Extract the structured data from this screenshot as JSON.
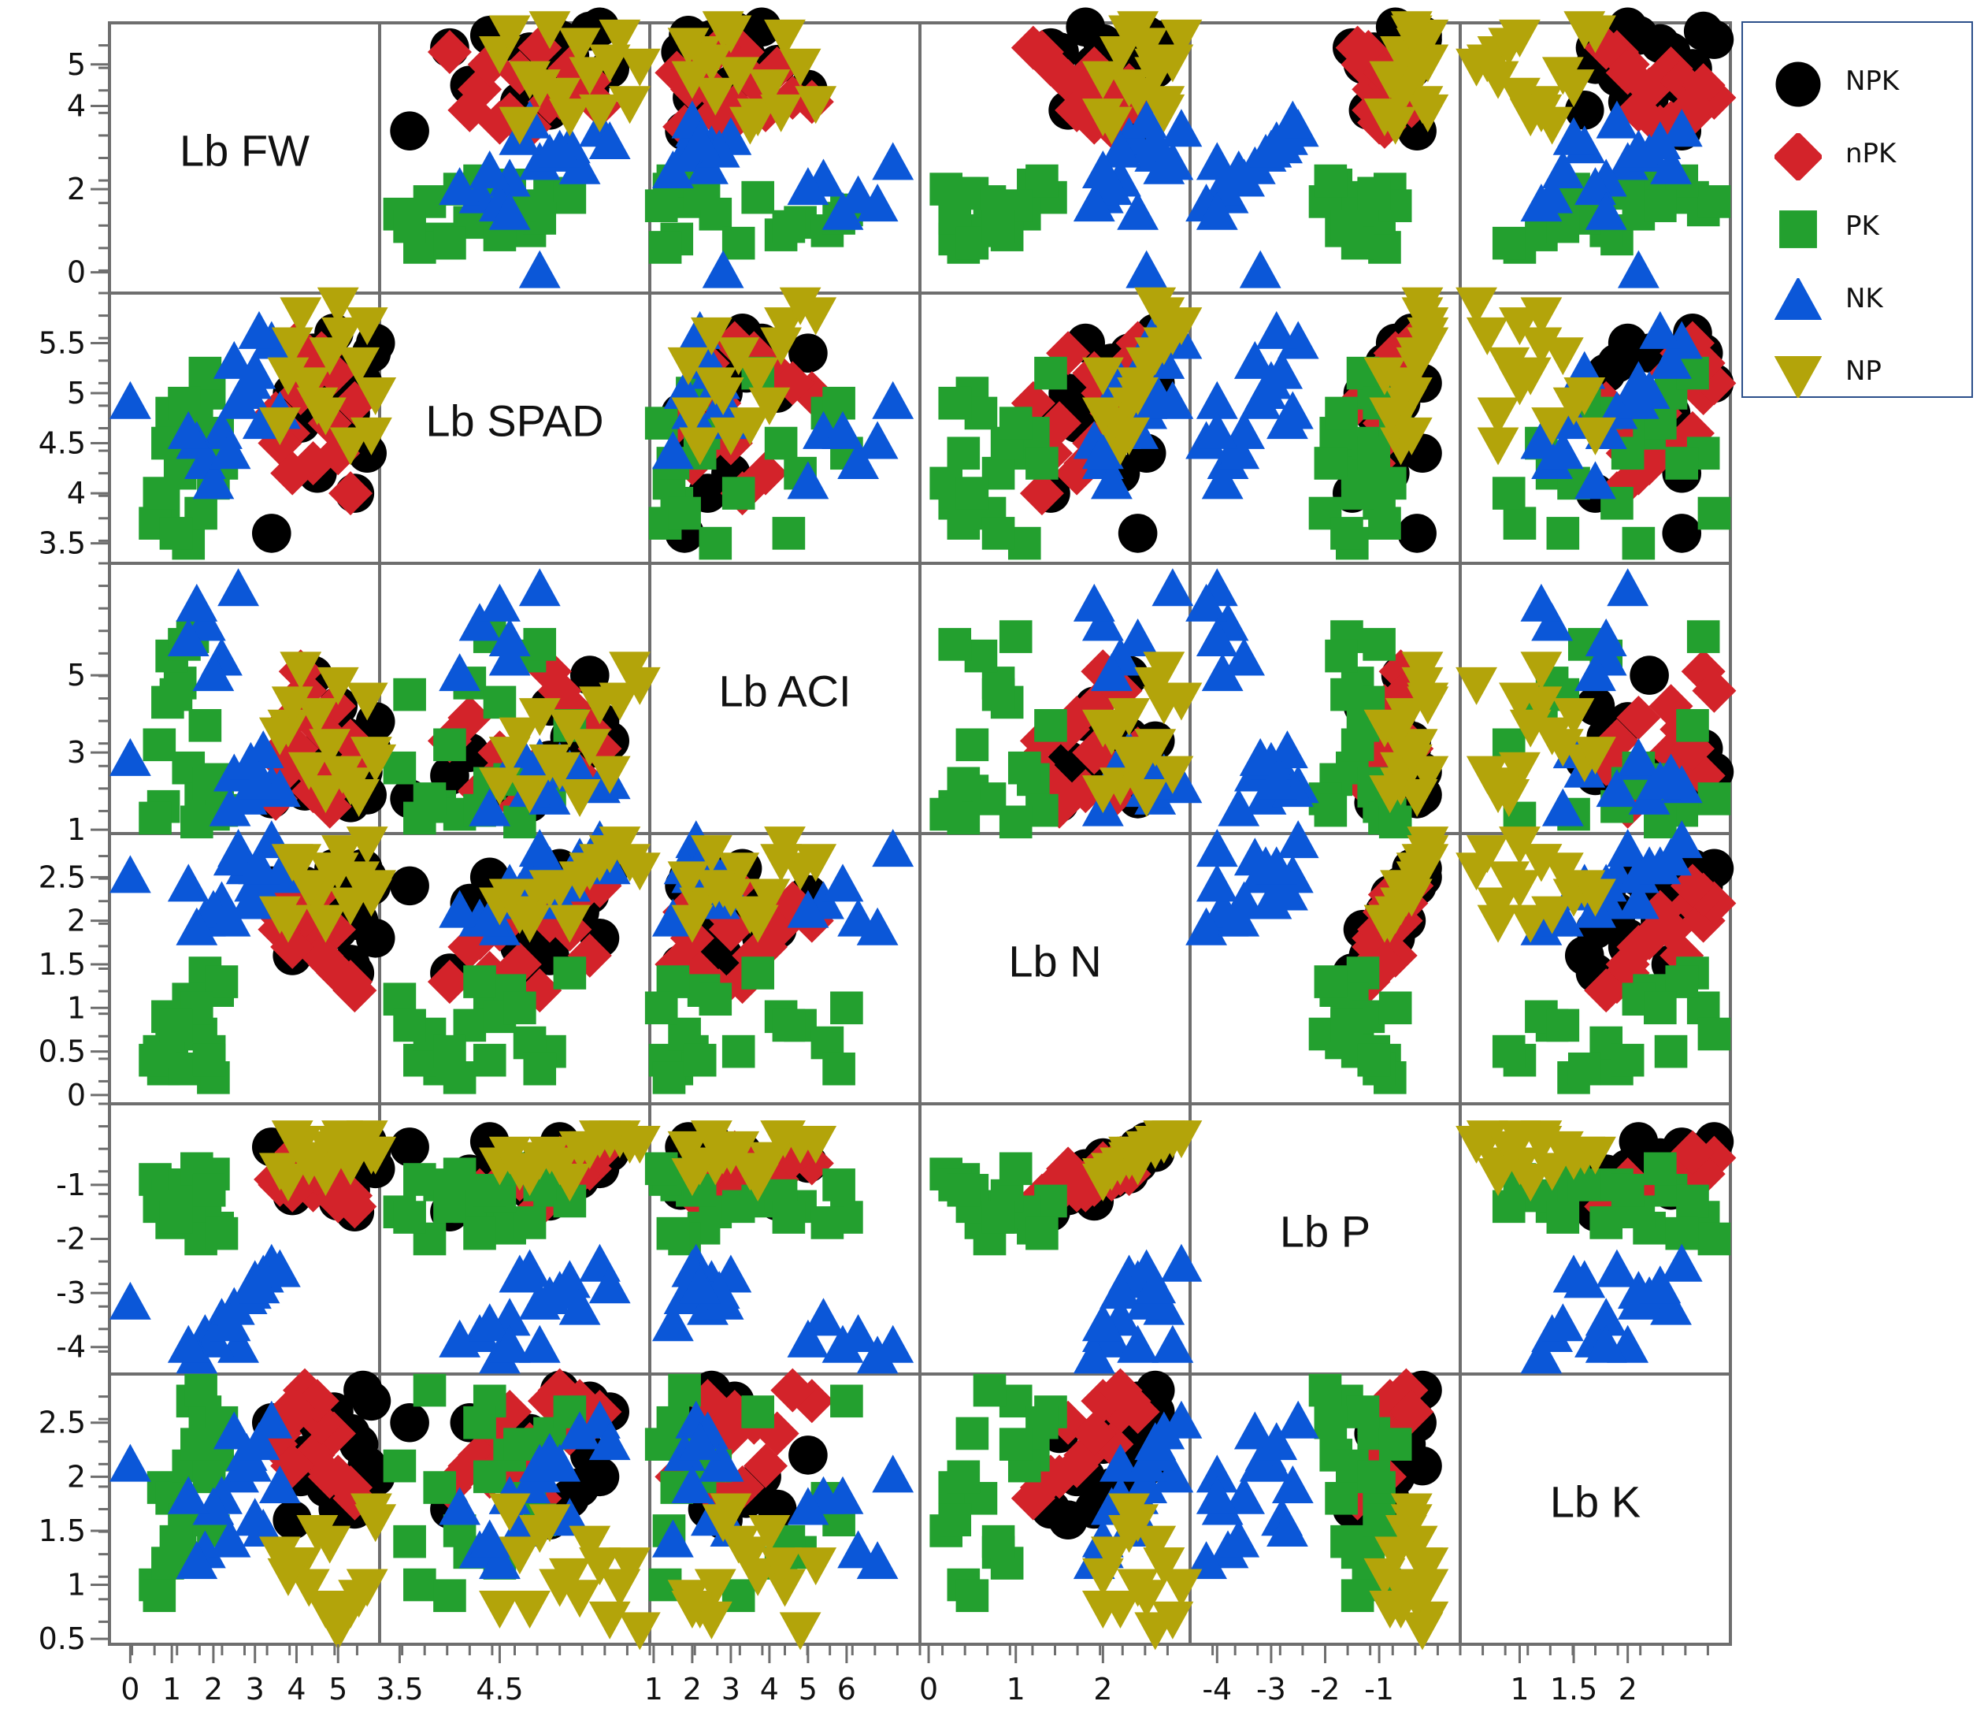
{
  "chart_data": {
    "type": "scatter",
    "subtype": "scatterplot-matrix",
    "variables": [
      "Lb FW",
      "Lb SPAD",
      "Lb ACI",
      "Lb N",
      "Lb P",
      "Lb K"
    ],
    "axis_ranges": [
      [
        -0.5,
        6.0
      ],
      [
        3.3,
        6.0
      ],
      [
        0.9,
        7.9
      ],
      [
        -0.1,
        3.0
      ],
      [
        -4.5,
        0.5
      ],
      [
        0.45,
        2.95
      ]
    ],
    "x_ticks": [
      {
        "values": [
          0,
          1,
          2,
          3,
          4,
          5
        ],
        "labels": [
          "0",
          "1",
          "2",
          "3",
          "4",
          "5"
        ]
      },
      {
        "values": [
          3.5,
          4.5
        ],
        "labels": [
          "3.5",
          "4.5"
        ]
      },
      {
        "values": [
          1,
          2,
          3,
          4,
          5,
          6
        ],
        "labels": [
          "1",
          "2",
          "3",
          "4",
          "5",
          "6"
        ]
      },
      {
        "values": [
          0,
          1,
          2
        ],
        "labels": [
          "0",
          "1",
          "2"
        ]
      },
      {
        "values": [
          -4,
          -3,
          -2,
          -1
        ],
        "labels": [
          "-4",
          "-3",
          "-2",
          "-1"
        ]
      },
      {
        "values": [
          1,
          1.5,
          2
        ],
        "labels": [
          "1",
          "1.5",
          "2"
        ]
      }
    ],
    "y_ticks": [
      {
        "values": [
          0,
          2,
          4,
          5
        ],
        "labels": [
          "0",
          "2",
          "4",
          "5"
        ]
      },
      {
        "values": [
          3.5,
          4,
          4.5,
          5,
          5.5
        ],
        "labels": [
          "3.5",
          "4",
          "4.5",
          "5",
          "5.5"
        ]
      },
      {
        "values": [
          1,
          3,
          5
        ],
        "labels": [
          "1",
          "3",
          "5"
        ]
      },
      {
        "values": [
          0,
          0.5,
          1,
          1.5,
          2,
          2.5
        ],
        "labels": [
          "0",
          "0.5",
          "1",
          "1.5",
          "2",
          "2.5"
        ]
      },
      {
        "values": [
          -4,
          -3,
          -2,
          -1
        ],
        "labels": [
          "-4",
          "-3",
          "-2",
          "-1"
        ]
      },
      {
        "values": [
          0.5,
          1,
          1.5,
          2,
          2.5
        ],
        "labels": [
          "0.5",
          "1",
          "1.5",
          "2",
          "2.5"
        ]
      }
    ],
    "legend": {
      "position": "top-right-outside"
    },
    "grid": false,
    "groups": [
      {
        "name": "NPK",
        "marker": "circle",
        "color": "#000000",
        "points": [
          [
            5.6,
            5.1,
            2.5,
            2.6,
            -0.2,
            2.8
          ],
          [
            5.8,
            5.4,
            3.1,
            2.4,
            -0.4,
            2.7
          ],
          [
            4.2,
            4.9,
            2.0,
            2.4,
            -0.6,
            2.2
          ],
          [
            4.7,
            5.3,
            3.6,
            2.1,
            -0.9,
            1.9
          ],
          [
            5.3,
            4.8,
            1.7,
            1.5,
            -1.1,
            2.4
          ],
          [
            5.9,
            5.5,
            3.8,
            1.8,
            -0.7,
            2.0
          ],
          [
            4.5,
            4.2,
            3.0,
            2.2,
            -0.8,
            2.5
          ],
          [
            3.4,
            3.6,
            1.8,
            2.4,
            -0.3,
            2.5
          ],
          [
            5.0,
            5.0,
            4.2,
            1.9,
            -1.3,
            1.7
          ],
          [
            5.5,
            4.5,
            2.6,
            2.0,
            -0.5,
            2.3
          ],
          [
            4.9,
            5.6,
            3.3,
            2.6,
            -0.4,
            2.6
          ],
          [
            4.1,
            4.7,
            2.3,
            1.7,
            -1.0,
            2.0
          ],
          [
            5.2,
            5.2,
            3.4,
            2.3,
            -0.8,
            1.8
          ],
          [
            3.9,
            5.0,
            2.8,
            1.6,
            -1.2,
            1.6
          ],
          [
            5.7,
            4.4,
            1.9,
            2.5,
            -0.2,
            2.1
          ],
          [
            4.4,
            5.4,
            5.0,
            2.3,
            -0.6,
            2.2
          ],
          [
            5.4,
            4.0,
            2.4,
            1.4,
            -1.5,
            1.7
          ]
        ]
      },
      {
        "name": "nPK",
        "marker": "diamond",
        "color": "#d3232a",
        "points": [
          [
            4.9,
            5.2,
            4.2,
            1.9,
            -0.9,
            2.4
          ],
          [
            3.8,
            4.6,
            2.6,
            2.2,
            -0.8,
            2.6
          ],
          [
            4.4,
            4.3,
            2.0,
            1.8,
            -1.1,
            2.2
          ],
          [
            5.3,
            4.0,
            3.3,
            1.3,
            -1.2,
            1.9
          ],
          [
            4.1,
            5.0,
            5.1,
            2.0,
            -0.6,
            2.7
          ],
          [
            3.5,
            4.8,
            1.8,
            2.1,
            -0.9,
            2.3
          ],
          [
            4.6,
            5.4,
            3.6,
            1.6,
            -0.7,
            2.5
          ],
          [
            5.0,
            4.4,
            2.2,
            1.4,
            -1.3,
            2.0
          ],
          [
            4.2,
            5.1,
            4.6,
            2.2,
            -0.5,
            2.8
          ],
          [
            3.6,
            4.5,
            3.0,
            1.9,
            -1.0,
            2.4
          ],
          [
            5.4,
            4.9,
            2.7,
            1.2,
            -1.4,
            1.8
          ],
          [
            4.5,
            5.3,
            2.4,
            2.3,
            -0.8,
            2.7
          ],
          [
            3.9,
            4.2,
            3.9,
            1.7,
            -1.1,
            2.1
          ],
          [
            4.8,
            4.7,
            1.6,
            1.5,
            -0.9,
            2.0
          ],
          [
            4.0,
            5.5,
            3.1,
            2.4,
            -0.4,
            2.6
          ]
        ]
      },
      {
        "name": "PK",
        "marker": "square",
        "color": "#23a02f",
        "points": [
          [
            1.9,
            5.0,
            2.0,
            0.5,
            -1.1,
            2.4
          ],
          [
            1.5,
            4.4,
            6.0,
            1.0,
            -1.6,
            2.7
          ],
          [
            0.8,
            3.9,
            1.6,
            0.3,
            -1.0,
            1.9
          ],
          [
            2.1,
            4.6,
            2.3,
            1.2,
            -1.8,
            2.2
          ],
          [
            1.2,
            4.2,
            4.8,
            0.8,
            -1.4,
            1.3
          ],
          [
            0.6,
            3.7,
            1.3,
            0.4,
            -0.9,
            1.0
          ],
          [
            1.8,
            5.2,
            3.7,
            1.4,
            -1.3,
            2.6
          ],
          [
            1.0,
            4.8,
            5.5,
            0.6,
            -1.7,
            1.8
          ],
          [
            2.0,
            4.1,
            1.4,
            0.2,
            -0.8,
            1.5
          ],
          [
            1.4,
            3.5,
            2.6,
            1.1,
            -1.5,
            2.1
          ],
          [
            0.9,
            4.5,
            4.3,
            0.9,
            -1.2,
            1.2
          ],
          [
            1.7,
            3.8,
            1.8,
            0.7,
            -2.0,
            2.8
          ],
          [
            1.3,
            4.9,
            5.8,
            0.3,
            -1.0,
            1.6
          ],
          [
            2.2,
            4.3,
            1.5,
            1.3,
            -1.9,
            2.5
          ],
          [
            0.7,
            4.0,
            3.2,
            0.5,
            -1.4,
            0.9
          ],
          [
            1.6,
            4.7,
            1.2,
            1.0,
            -0.7,
            2.3
          ],
          [
            1.1,
            3.6,
            4.5,
            0.8,
            -1.6,
            1.4
          ],
          [
            1.9,
            4.4,
            2.2,
            0.4,
            -1.1,
            2.0
          ]
        ]
      },
      {
        "name": "NK",
        "marker": "triangle-up",
        "color": "#0b57d8",
        "points": [
          [
            2.6,
            4.9,
            7.2,
            2.8,
            -4.0,
            2.0
          ],
          [
            3.0,
            5.2,
            2.5,
            2.4,
            -2.8,
            1.6
          ],
          [
            2.2,
            4.6,
            5.4,
            2.2,
            -3.5,
            1.8
          ],
          [
            3.4,
            5.5,
            2.1,
            2.9,
            -2.5,
            2.5
          ],
          [
            1.8,
            4.3,
            6.3,
            2.0,
            -3.8,
            1.3
          ],
          [
            2.8,
            5.0,
            1.8,
            2.6,
            -3.1,
            2.2
          ],
          [
            3.2,
            4.7,
            3.0,
            2.3,
            -2.7,
            1.5
          ],
          [
            2.0,
            4.1,
            5.0,
            2.1,
            -3.9,
            1.7
          ],
          [
            2.5,
            5.3,
            2.4,
            2.7,
            -3.3,
            2.4
          ],
          [
            3.6,
            4.8,
            2.0,
            2.5,
            -2.6,
            1.9
          ],
          [
            1.6,
            4.5,
            6.8,
            1.9,
            -4.2,
            1.2
          ],
          [
            2.9,
            5.1,
            2.7,
            2.2,
            -3.0,
            2.1
          ],
          [
            0.0,
            4.9,
            2.8,
            2.5,
            -3.2,
            2.1
          ],
          [
            2.4,
            4.4,
            1.5,
            2.0,
            -3.6,
            1.4
          ],
          [
            3.1,
            5.6,
            2.2,
            2.6,
            -2.9,
            2.3
          ],
          [
            1.4,
            4.6,
            5.9,
            2.4,
            -4.0,
            1.8
          ]
        ]
      },
      {
        "name": "NP",
        "marker": "triangle-down",
        "color": "#b3a40a",
        "points": [
          [
            5.7,
            5.7,
            4.4,
            2.9,
            -0.1,
            1.0
          ],
          [
            4.8,
            5.4,
            3.2,
            2.6,
            -0.3,
            1.4
          ],
          [
            5.3,
            4.5,
            2.2,
            2.2,
            -0.6,
            0.8
          ],
          [
            4.1,
            5.8,
            5.2,
            2.7,
            -0.2,
            1.2
          ],
          [
            5.9,
            5.0,
            2.8,
            2.4,
            -0.4,
            1.6
          ],
          [
            3.8,
            5.2,
            3.7,
            2.0,
            -0.9,
            1.1
          ],
          [
            5.1,
            5.6,
            2.5,
            2.8,
            -0.1,
            0.7
          ],
          [
            4.5,
            4.9,
            4.0,
            2.3,
            -0.5,
            1.5
          ],
          [
            5.5,
            5.3,
            1.9,
            2.5,
            -0.3,
            0.9
          ],
          [
            3.6,
            4.7,
            3.5,
            2.1,
            -0.7,
            1.3
          ],
          [
            5.0,
            5.9,
            4.8,
            2.6,
            -0.2,
            0.6
          ],
          [
            4.3,
            5.1,
            2.6,
            2.4,
            -0.6,
            1.0
          ],
          [
            5.8,
            4.6,
            3.0,
            2.3,
            -0.4,
            1.7
          ],
          [
            3.9,
            5.5,
            4.3,
            2.7,
            -0.1,
            1.2
          ],
          [
            4.7,
            4.8,
            2.0,
            2.0,
            -0.8,
            0.8
          ]
        ]
      }
    ]
  }
}
